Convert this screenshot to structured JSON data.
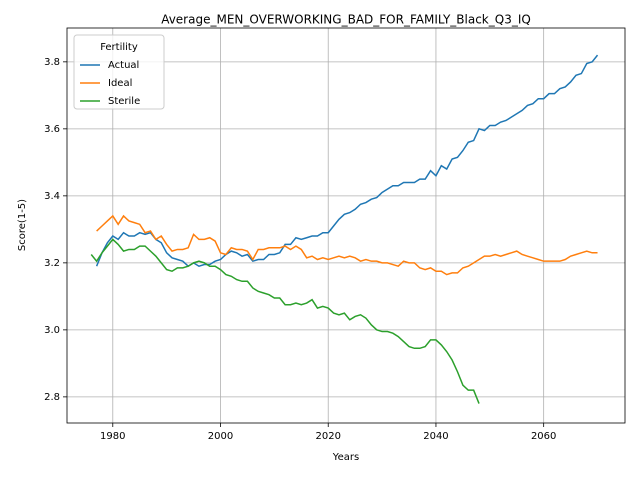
{
  "chart_data": {
    "type": "line",
    "title": "Average_MEN_OVERWORKING_BAD_FOR_FAMILY_Black_Q3_IQ",
    "xlabel": "Years",
    "ylabel": "Score(1-5)",
    "x": [
      1976,
      1977,
      1978,
      1979,
      1980,
      1981,
      1982,
      1983,
      1984,
      1985,
      1986,
      1987,
      1988,
      1989,
      1990,
      1991,
      1992,
      1993,
      1994,
      1995,
      1996,
      1997,
      1998,
      1999,
      2000,
      2001,
      2002,
      2003,
      2004,
      2005,
      2006,
      2007,
      2008,
      2009,
      2010,
      2011,
      2012,
      2013,
      2014,
      2015,
      2016,
      2017,
      2018,
      2019,
      2020,
      2021,
      2022,
      2023,
      2024,
      2025,
      2026,
      2027,
      2028,
      2029,
      2030,
      2031,
      2032,
      2033,
      2034,
      2035,
      2036,
      2037,
      2038,
      2039,
      2040,
      2041,
      2042,
      2043,
      2044,
      2045,
      2046,
      2047,
      2048,
      2049,
      2050,
      2051,
      2052,
      2053,
      2054,
      2055,
      2056,
      2057,
      2058,
      2059,
      2060,
      2061,
      2062,
      2063,
      2064,
      2065,
      2066,
      2067,
      2068,
      2069,
      2070
    ],
    "series": [
      {
        "name": "Actual",
        "color": "#1f77b4",
        "values": [
          null,
          3.19,
          3.23,
          3.26,
          3.28,
          3.27,
          3.29,
          3.28,
          3.28,
          3.29,
          3.285,
          3.29,
          3.27,
          3.26,
          3.23,
          3.215,
          3.21,
          3.205,
          3.19,
          3.2,
          3.19,
          3.195,
          3.195,
          3.205,
          3.21,
          3.225,
          3.235,
          3.23,
          3.22,
          3.225,
          3.205,
          3.21,
          3.21,
          3.225,
          3.225,
          3.23,
          3.255,
          3.255,
          3.275,
          3.27,
          3.275,
          3.28,
          3.28,
          3.29,
          3.29,
          3.31,
          3.33,
          3.345,
          3.35,
          3.36,
          3.375,
          3.38,
          3.39,
          3.395,
          3.41,
          3.42,
          3.43,
          3.43,
          3.44,
          3.44,
          3.44,
          3.45,
          3.45,
          3.475,
          3.46,
          3.49,
          3.48,
          3.51,
          3.515,
          3.535,
          3.56,
          3.565,
          3.6,
          3.595,
          3.61,
          3.61,
          3.62,
          3.625,
          3.635,
          3.645,
          3.655,
          3.67,
          3.675,
          3.69,
          3.69,
          3.705,
          3.705,
          3.72,
          3.725,
          3.74,
          3.76,
          3.765,
          3.795,
          3.8,
          3.82
        ]
      },
      {
        "name": "Ideal",
        "color": "#ff7f0e",
        "values": [
          null,
          3.295,
          3.31,
          3.325,
          3.34,
          3.315,
          3.34,
          3.325,
          3.32,
          3.315,
          3.29,
          3.295,
          3.27,
          3.28,
          3.255,
          3.235,
          3.24,
          3.24,
          3.245,
          3.285,
          3.27,
          3.27,
          3.275,
          3.265,
          3.23,
          3.225,
          3.245,
          3.24,
          3.24,
          3.235,
          3.21,
          3.24,
          3.24,
          3.245,
          3.245,
          3.245,
          3.25,
          3.24,
          3.25,
          3.24,
          3.215,
          3.22,
          3.21,
          3.215,
          3.21,
          3.215,
          3.22,
          3.215,
          3.22,
          3.215,
          3.205,
          3.21,
          3.205,
          3.205,
          3.2,
          3.2,
          3.195,
          3.19,
          3.205,
          3.2,
          3.2,
          3.185,
          3.18,
          3.185,
          3.175,
          3.175,
          3.165,
          3.17,
          3.17,
          3.185,
          3.19,
          3.2,
          3.21,
          3.22,
          3.22,
          3.225,
          3.22,
          3.225,
          3.23,
          3.235,
          3.225,
          3.22,
          3.215,
          3.21,
          3.205,
          3.205,
          3.205,
          3.205,
          3.21,
          3.22,
          3.225,
          3.23,
          3.235,
          3.23,
          3.23
        ]
      },
      {
        "name": "Sterile",
        "color": "#2ca02c",
        "values": [
          3.225,
          3.205,
          3.23,
          3.25,
          3.27,
          3.255,
          3.235,
          3.24,
          3.24,
          3.25,
          3.25,
          3.235,
          3.22,
          3.2,
          3.18,
          3.175,
          3.185,
          3.185,
          3.19,
          3.2,
          3.205,
          3.2,
          3.19,
          3.19,
          3.18,
          3.165,
          3.16,
          3.15,
          3.145,
          3.145,
          3.125,
          3.115,
          3.11,
          3.105,
          3.095,
          3.095,
          3.075,
          3.075,
          3.08,
          3.075,
          3.08,
          3.09,
          3.065,
          3.07,
          3.065,
          3.05,
          3.045,
          3.05,
          3.03,
          3.04,
          3.045,
          3.035,
          3.015,
          3.0,
          2.995,
          2.995,
          2.99,
          2.98,
          2.965,
          2.95,
          2.945,
          2.945,
          2.95,
          2.97,
          2.97,
          2.955,
          2.935,
          2.91,
          2.875,
          2.835,
          2.82,
          2.82,
          2.78,
          null,
          null,
          null,
          null,
          null,
          null,
          null,
          null,
          null,
          null,
          null,
          null,
          null,
          null,
          null,
          null,
          null,
          null,
          null,
          null,
          null,
          null
        ]
      }
    ],
    "xlim": [
      1971.5,
      2075.1
    ],
    "xticks": [
      1980,
      2000,
      2020,
      2040,
      2060
    ],
    "ylim": [
      2.722,
      3.901
    ],
    "yticks": [
      2.8,
      {
        "value": 3,
        "label": "3.0"
      },
      3.2,
      3.4,
      3.6,
      3.8
    ],
    "grid": true,
    "legend_title": "Fertility",
    "legend_position": "upper left"
  }
}
